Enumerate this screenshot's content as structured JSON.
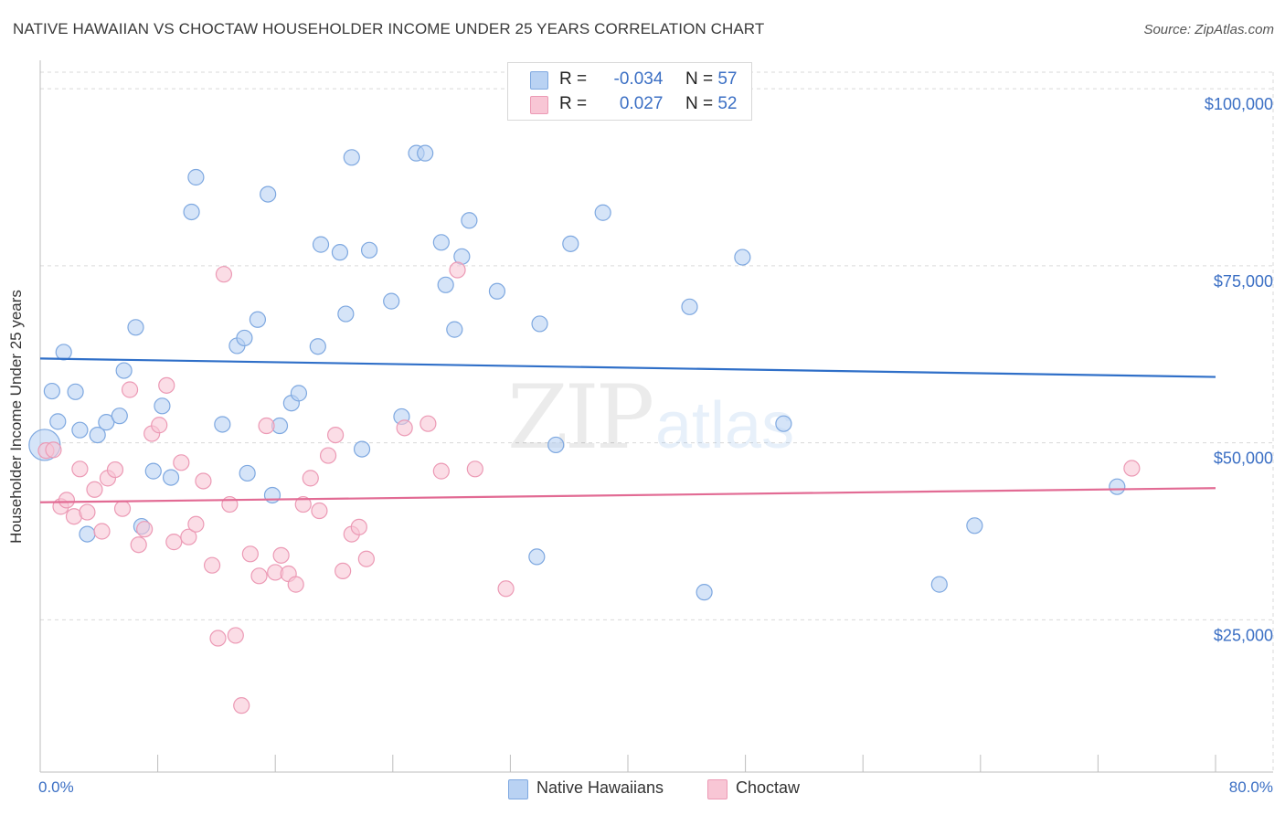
{
  "header": {
    "title": "NATIVE HAWAIIAN VS CHOCTAW HOUSEHOLDER INCOME UNDER 25 YEARS CORRELATION CHART",
    "source": "Source: ZipAtlas.com"
  },
  "legend": {
    "r_label": "R =",
    "n_label": "N =",
    "series1": {
      "r": "-0.034",
      "n": "57"
    },
    "series2": {
      "r": "0.027",
      "n": "52"
    }
  },
  "watermark": {
    "zip": "ZIP",
    "atlas": "atlas"
  },
  "colors": {
    "native_fill": "#b9d2f3",
    "native_stroke": "#7ea8e0",
    "native_line": "#2f6fc8",
    "choctaw_fill": "#f8c6d5",
    "choctaw_stroke": "#ec9ab5",
    "choctaw_line": "#e26b94",
    "tick_label": "#3b6fc4",
    "grid": "#d9d9d9"
  },
  "chart_data": {
    "type": "scatter",
    "title": "NATIVE HAWAIIAN VS CHOCTAW HOUSEHOLDER INCOME UNDER 25 YEARS CORRELATION CHART",
    "xlabel": "",
    "ylabel": "Householder Income Under 25 years",
    "x_tick_labels": [
      "0.0%",
      "80.0%"
    ],
    "y_tick_labels": [
      "$25,000",
      "$50,000",
      "$75,000",
      "$100,000"
    ],
    "y_ticks": [
      25000,
      50000,
      75000,
      100000
    ],
    "xlim": [
      0,
      80
    ],
    "ylim": [
      3500,
      103500
    ],
    "grid": true,
    "legend_placement": "bottom-center",
    "series": [
      {
        "name": "Native Hawaiians",
        "r": -0.034,
        "n": 57,
        "trend": {
          "x": [
            0,
            80
          ],
          "y": [
            61900,
            59300
          ]
        },
        "points": [
          [
            0.3,
            49700
          ],
          [
            0.8,
            57300
          ],
          [
            1.2,
            53000
          ],
          [
            1.6,
            62800
          ],
          [
            2.4,
            57200
          ],
          [
            2.7,
            51800
          ],
          [
            3.2,
            37100
          ],
          [
            3.9,
            51100
          ],
          [
            4.5,
            52900
          ],
          [
            5.4,
            53800
          ],
          [
            5.7,
            60200
          ],
          [
            6.5,
            66300
          ],
          [
            6.9,
            38200
          ],
          [
            7.7,
            46000
          ],
          [
            8.3,
            55200
          ],
          [
            8.9,
            45100
          ],
          [
            10.3,
            82600
          ],
          [
            10.6,
            87500
          ],
          [
            12.4,
            52600
          ],
          [
            13.4,
            63700
          ],
          [
            13.9,
            64800
          ],
          [
            14.1,
            45700
          ],
          [
            14.8,
            67400
          ],
          [
            15.5,
            85100
          ],
          [
            15.8,
            42600
          ],
          [
            16.3,
            52400
          ],
          [
            17.1,
            55600
          ],
          [
            17.6,
            57000
          ],
          [
            18.9,
            63600
          ],
          [
            19.1,
            78000
          ],
          [
            20.4,
            76900
          ],
          [
            20.8,
            68200
          ],
          [
            21.2,
            90300
          ],
          [
            21.9,
            49100
          ],
          [
            22.4,
            77200
          ],
          [
            23.9,
            70000
          ],
          [
            24.6,
            53700
          ],
          [
            25.6,
            90900
          ],
          [
            26.2,
            90900
          ],
          [
            27.3,
            78300
          ],
          [
            27.6,
            72300
          ],
          [
            28.2,
            66000
          ],
          [
            28.7,
            76300
          ],
          [
            29.2,
            81400
          ],
          [
            31.1,
            71400
          ],
          [
            33.8,
            33900
          ],
          [
            34.0,
            66800
          ],
          [
            35.1,
            49700
          ],
          [
            36.1,
            78100
          ],
          [
            38.3,
            82500
          ],
          [
            44.2,
            69200
          ],
          [
            45.2,
            28900
          ],
          [
            47.8,
            76200
          ],
          [
            50.6,
            52700
          ],
          [
            61.2,
            30000
          ],
          [
            63.6,
            38300
          ],
          [
            73.3,
            43800
          ]
        ]
      },
      {
        "name": "Choctaw",
        "r": 0.027,
        "n": 52,
        "trend": {
          "x": [
            0,
            80
          ],
          "y": [
            41600,
            43600
          ]
        },
        "points": [
          [
            0.4,
            48900
          ],
          [
            0.9,
            49000
          ],
          [
            1.4,
            41000
          ],
          [
            1.8,
            41900
          ],
          [
            2.3,
            39600
          ],
          [
            2.7,
            46300
          ],
          [
            3.2,
            40200
          ],
          [
            3.7,
            43400
          ],
          [
            4.2,
            37500
          ],
          [
            4.6,
            45000
          ],
          [
            5.1,
            46200
          ],
          [
            5.6,
            40700
          ],
          [
            6.1,
            57500
          ],
          [
            6.7,
            35600
          ],
          [
            7.1,
            37800
          ],
          [
            7.6,
            51300
          ],
          [
            8.1,
            52500
          ],
          [
            8.6,
            58100
          ],
          [
            9.1,
            36000
          ],
          [
            9.6,
            47200
          ],
          [
            10.1,
            36700
          ],
          [
            10.6,
            38500
          ],
          [
            11.1,
            44600
          ],
          [
            11.7,
            32700
          ],
          [
            12.1,
            22400
          ],
          [
            12.5,
            73800
          ],
          [
            12.9,
            41300
          ],
          [
            13.3,
            22800
          ],
          [
            13.7,
            12900
          ],
          [
            14.3,
            34300
          ],
          [
            14.9,
            31200
          ],
          [
            15.4,
            52400
          ],
          [
            16.0,
            31700
          ],
          [
            16.4,
            34100
          ],
          [
            16.9,
            31500
          ],
          [
            17.4,
            30000
          ],
          [
            17.9,
            41300
          ],
          [
            18.4,
            45000
          ],
          [
            19.0,
            40400
          ],
          [
            19.6,
            48200
          ],
          [
            20.1,
            51100
          ],
          [
            20.6,
            31900
          ],
          [
            21.2,
            37100
          ],
          [
            21.7,
            38100
          ],
          [
            22.2,
            33600
          ],
          [
            24.8,
            52100
          ],
          [
            26.4,
            52700
          ],
          [
            27.3,
            46000
          ],
          [
            28.4,
            74400
          ],
          [
            29.6,
            46300
          ],
          [
            31.7,
            29400
          ],
          [
            74.3,
            46400
          ]
        ]
      }
    ]
  }
}
